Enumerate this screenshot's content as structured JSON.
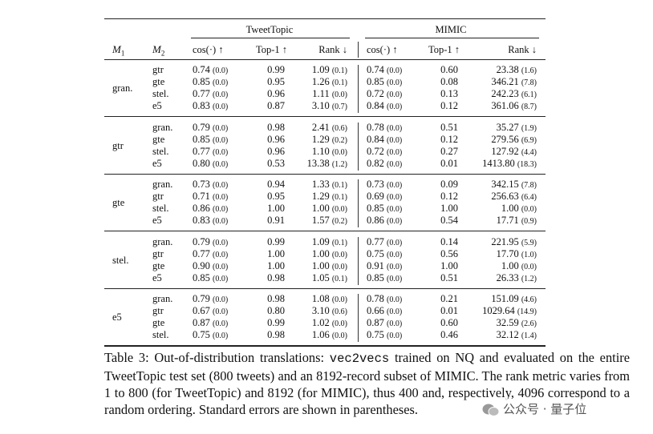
{
  "table": {
    "groups": [
      "TweetTopic",
      "MIMIC"
    ],
    "m1": {
      "base": "M",
      "sub": "1"
    },
    "m2": {
      "base": "M",
      "sub": "2"
    },
    "columns": [
      "cos(·) ↑",
      "Top-1 ↑",
      "Rank ↓",
      "cos(·) ↑",
      "Top-1 ↑",
      "Rank ↓"
    ],
    "blocks": [
      {
        "label": "gran.",
        "rows": [
          [
            "gtr",
            "0.74",
            "(0.0)",
            "0.99",
            "1.09",
            "(0.1)",
            "0.74",
            "(0.0)",
            "0.60",
            "23.38",
            "(1.6)"
          ],
          [
            "gte",
            "0.85",
            "(0.0)",
            "0.95",
            "1.26",
            "(0.1)",
            "0.85",
            "(0.0)",
            "0.08",
            "346.21",
            "(7.8)"
          ],
          [
            "stel.",
            "0.77",
            "(0.0)",
            "0.96",
            "1.11",
            "(0.0)",
            "0.72",
            "(0.0)",
            "0.13",
            "242.23",
            "(6.1)"
          ],
          [
            "e5",
            "0.83",
            "(0.0)",
            "0.87",
            "3.10",
            "(0.7)",
            "0.84",
            "(0.0)",
            "0.12",
            "361.06",
            "(8.7)"
          ]
        ]
      },
      {
        "label": "gtr",
        "rows": [
          [
            "gran.",
            "0.79",
            "(0.0)",
            "0.98",
            "2.41",
            "(0.6)",
            "0.78",
            "(0.0)",
            "0.51",
            "35.27",
            "(1.9)"
          ],
          [
            "gte",
            "0.85",
            "(0.0)",
            "0.96",
            "1.29",
            "(0.2)",
            "0.84",
            "(0.0)",
            "0.12",
            "279.56",
            "(6.9)"
          ],
          [
            "stel.",
            "0.77",
            "(0.0)",
            "0.96",
            "1.10",
            "(0.0)",
            "0.72",
            "(0.0)",
            "0.27",
            "127.92",
            "(4.4)"
          ],
          [
            "e5",
            "0.80",
            "(0.0)",
            "0.53",
            "13.38",
            "(1.2)",
            "0.82",
            "(0.0)",
            "0.01",
            "1413.80",
            "(18.3)"
          ]
        ]
      },
      {
        "label": "gte",
        "rows": [
          [
            "gran.",
            "0.73",
            "(0.0)",
            "0.94",
            "1.33",
            "(0.1)",
            "0.73",
            "(0.0)",
            "0.09",
            "342.15",
            "(7.8)"
          ],
          [
            "gtr",
            "0.71",
            "(0.0)",
            "0.95",
            "1.29",
            "(0.1)",
            "0.69",
            "(0.0)",
            "0.12",
            "256.63",
            "(6.4)"
          ],
          [
            "stel.",
            "0.86",
            "(0.0)",
            "1.00",
            "1.00",
            "(0.0)",
            "0.85",
            "(0.0)",
            "1.00",
            "1.00",
            "(0.0)"
          ],
          [
            "e5",
            "0.83",
            "(0.0)",
            "0.91",
            "1.57",
            "(0.2)",
            "0.86",
            "(0.0)",
            "0.54",
            "17.71",
            "(0.9)"
          ]
        ]
      },
      {
        "label": "stel.",
        "rows": [
          [
            "gran.",
            "0.79",
            "(0.0)",
            "0.99",
            "1.09",
            "(0.1)",
            "0.77",
            "(0.0)",
            "0.14",
            "221.95",
            "(5.9)"
          ],
          [
            "gtr",
            "0.77",
            "(0.0)",
            "1.00",
            "1.00",
            "(0.0)",
            "0.75",
            "(0.0)",
            "0.56",
            "17.70",
            "(1.0)"
          ],
          [
            "gte",
            "0.90",
            "(0.0)",
            "1.00",
            "1.00",
            "(0.0)",
            "0.91",
            "(0.0)",
            "1.00",
            "1.00",
            "(0.0)"
          ],
          [
            "e5",
            "0.85",
            "(0.0)",
            "0.98",
            "1.05",
            "(0.1)",
            "0.85",
            "(0.0)",
            "0.51",
            "26.33",
            "(1.2)"
          ]
        ]
      },
      {
        "label": "e5",
        "rows": [
          [
            "gran.",
            "0.79",
            "(0.0)",
            "0.98",
            "1.08",
            "(0.0)",
            "0.78",
            "(0.0)",
            "0.21",
            "151.09",
            "(4.6)"
          ],
          [
            "gtr",
            "0.67",
            "(0.0)",
            "0.80",
            "3.10",
            "(0.6)",
            "0.66",
            "(0.0)",
            "0.01",
            "1029.64",
            "(14.9)"
          ],
          [
            "gte",
            "0.87",
            "(0.0)",
            "0.99",
            "1.02",
            "(0.0)",
            "0.87",
            "(0.0)",
            "0.60",
            "32.59",
            "(2.6)"
          ],
          [
            "stel.",
            "0.75",
            "(0.0)",
            "0.98",
            "1.06",
            "(0.0)",
            "0.75",
            "(0.0)",
            "0.46",
            "32.12",
            "(1.4)"
          ]
        ]
      }
    ]
  },
  "caption": {
    "parts": [
      "Table 3:",
      " Out-of-distribution translations: ",
      "vec2vecs",
      " trained on NQ and evaluated on the entire TweetTopic test set (800 tweets) and an 8192-record subset of MIMIC. The rank metric varies from 1 to 800 (for TweetTopic) and 8192 (for MIMIC), thus 400 and, respectively, 4096 correspond to a random ordering. Standard errors are shown in parentheses."
    ]
  },
  "watermark": "公众号 · 量子位"
}
